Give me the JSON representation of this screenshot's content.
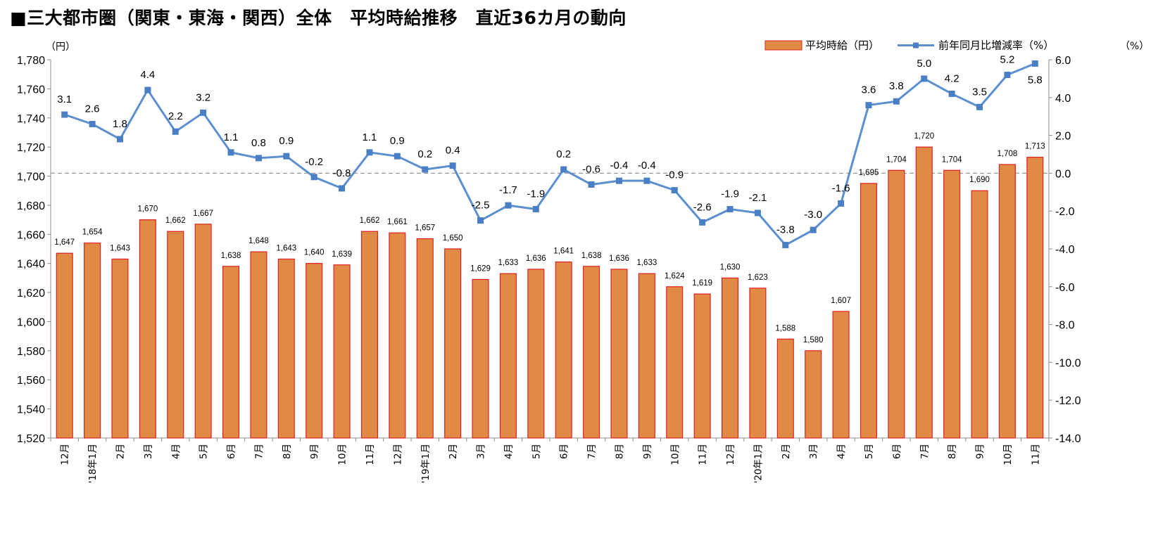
{
  "title": "■三大都市圏（関東・東海・関西）全体　平均時給推移　直近36カ月の動向",
  "chart_data": {
    "type": "bar+line",
    "categories": [
      "12月",
      "'18年1月",
      "2月",
      "3月",
      "4月",
      "5月",
      "6月",
      "7月",
      "8月",
      "9月",
      "10月",
      "11月",
      "12月",
      "'19年1月",
      "2月",
      "3月",
      "4月",
      "5月",
      "6月",
      "7月",
      "8月",
      "9月",
      "10月",
      "11月",
      "12月",
      "'20年1月",
      "2月",
      "3月",
      "4月",
      "5月",
      "6月",
      "7月",
      "8月",
      "9月",
      "10月",
      "11月"
    ],
    "series": [
      {
        "name": "平均時給（円）",
        "type": "bar",
        "axis": "left",
        "values": [
          1647,
          1654,
          1643,
          1670,
          1662,
          1667,
          1638,
          1648,
          1643,
          1640,
          1639,
          1662,
          1661,
          1657,
          1650,
          1629,
          1633,
          1636,
          1641,
          1638,
          1636,
          1633,
          1624,
          1619,
          1630,
          1623,
          1588,
          1580,
          1607,
          1695,
          1704,
          1720,
          1704,
          1690,
          1708,
          1713
        ],
        "labels": [
          "1,647",
          "1,654",
          "1,643",
          "1,670",
          "1,662",
          "1,667",
          "1,638",
          "1,648",
          "1,643",
          "1,640",
          "1,639",
          "1,662",
          "1,661",
          "1,657",
          "1,650",
          "1,629",
          "1,633",
          "1,636",
          "1,641",
          "1,638",
          "1,636",
          "1,633",
          "1,624",
          "1,619",
          "1,630",
          "1,623",
          "1,588",
          "1,580",
          "1,607",
          "1,695",
          "1,704",
          "1,720",
          "1,704",
          "1,690",
          "1,708",
          "1,713"
        ]
      },
      {
        "name": "前年同月比増減率（%）",
        "type": "line",
        "axis": "right",
        "values": [
          3.1,
          2.6,
          1.8,
          4.4,
          2.2,
          3.2,
          1.1,
          0.8,
          0.9,
          -0.2,
          -0.8,
          1.1,
          0.9,
          0.2,
          0.4,
          -2.5,
          -1.7,
          -1.9,
          0.2,
          -0.6,
          -0.4,
          -0.4,
          -0.9,
          -2.6,
          -1.9,
          -2.1,
          -3.8,
          -3.0,
          -1.6,
          3.6,
          3.8,
          5.0,
          4.2,
          3.5,
          5.2,
          5.8
        ],
        "labels": [
          "3.1",
          "2.6",
          "1.8",
          "4.4",
          "2.2",
          "3.2",
          "1.1",
          "0.8",
          "0.9",
          "-0.2",
          "-0.8",
          "1.1",
          "0.9",
          "0.2",
          "0.4",
          "-2.5",
          "-1.7",
          "-1.9",
          "0.2",
          "-0.6",
          "-0.4",
          "-0.4",
          "-0.9",
          "-2.6",
          "-1.9",
          "-2.1",
          "-3.8",
          "-3.0",
          "-1.6",
          "3.6",
          "3.8",
          "5.0",
          "4.2",
          "3.5",
          "5.2",
          "5.8"
        ]
      }
    ],
    "left_axis": {
      "unit": "（円）",
      "ylim": [
        1520,
        1780
      ],
      "ticks": [
        1520,
        1540,
        1560,
        1580,
        1600,
        1620,
        1640,
        1660,
        1680,
        1700,
        1720,
        1740,
        1760,
        1780
      ],
      "tick_labels": [
        "1,520",
        "1,540",
        "1,560",
        "1,580",
        "1,600",
        "1,620",
        "1,640",
        "1,660",
        "1,680",
        "1,700",
        "1,720",
        "1,740",
        "1,760",
        "1,780"
      ]
    },
    "right_axis": {
      "unit": "（%）",
      "ylim": [
        -14,
        6
      ],
      "ticks": [
        -14,
        -12,
        -10,
        -8,
        -6,
        -4,
        -2,
        0,
        2,
        4,
        6
      ],
      "tick_labels": [
        "-14.0",
        "-12.0",
        "-10.0",
        "-8.0",
        "-6.0",
        "-4.0",
        "-2.0",
        "0.0",
        "2.0",
        "4.0",
        "6.0"
      ]
    },
    "reference_line": {
      "axis": "right",
      "value": 0,
      "style": "dashed"
    },
    "legend_position": "top-right",
    "grid": false,
    "colors": {
      "bar_fill": "#e08a45",
      "bar_stroke": "#e02020",
      "line": "#5b8fd0",
      "marker": "#4a7fc6",
      "zero_line": "#9a9a9a"
    }
  }
}
